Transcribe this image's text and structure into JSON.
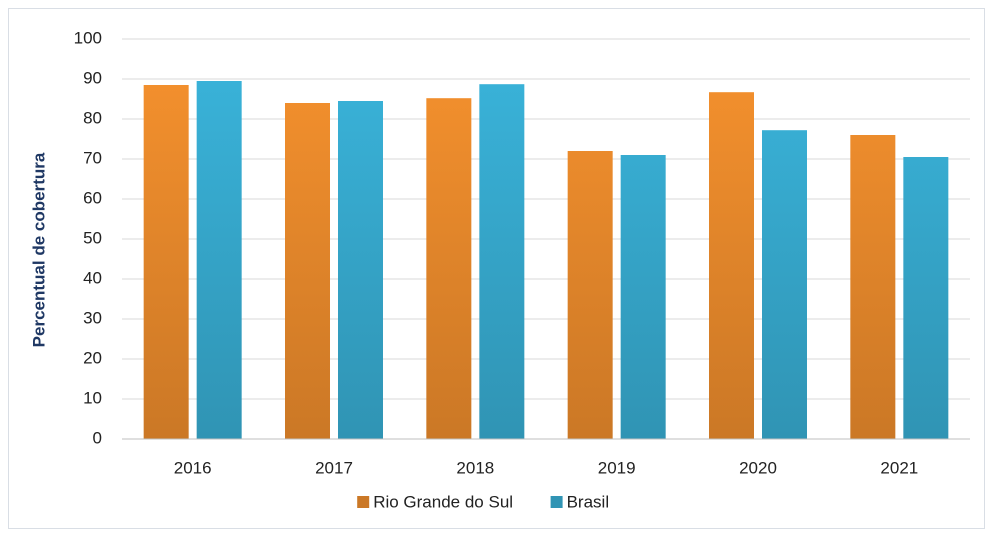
{
  "chart_data": {
    "type": "bar",
    "y_label": "Percentual de cobertura",
    "categories": [
      "2016",
      "2017",
      "2018",
      "2019",
      "2020",
      "2021"
    ],
    "series": [
      {
        "name": "Rio Grande do Sul",
        "color": "#f7922e",
        "values": [
          88.5,
          84,
          85.2,
          72,
          86.7,
          76
        ]
      },
      {
        "name": "Brasil",
        "color": "#3ab5dc",
        "values": [
          89.5,
          84.5,
          88.7,
          71,
          77.2,
          70.5
        ]
      }
    ],
    "ylim": [
      0,
      100
    ],
    "yticks": [
      0,
      10,
      20,
      30,
      40,
      50,
      60,
      70,
      80,
      90,
      100
    ],
    "grid": true,
    "legend": "bottom"
  }
}
